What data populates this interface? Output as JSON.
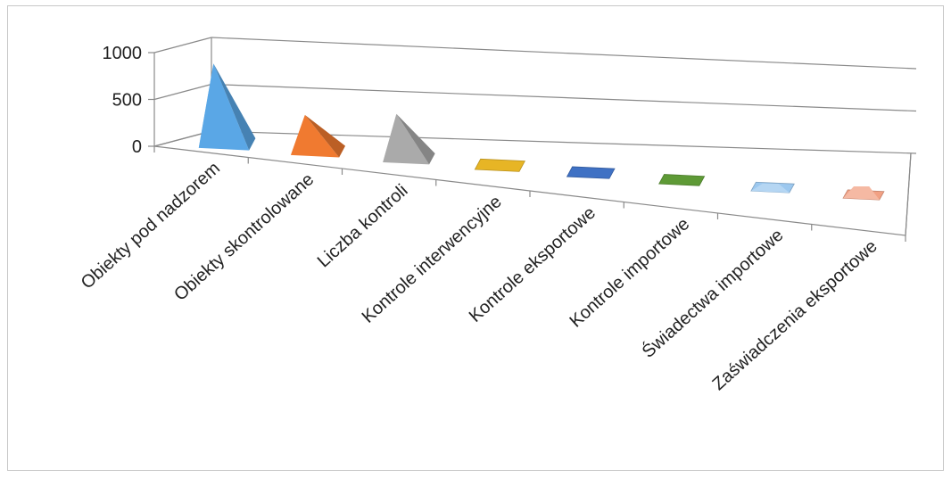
{
  "chart_data": {
    "type": "bar",
    "style": "3d-pyramid",
    "categories": [
      "Obiekty pod nadzorem",
      "Obiekty skontrolowane",
      "Liczba kontroli",
      "Kontrole interwencyjne",
      "Kontrole eksportowe",
      "Kontrole importowe",
      "Świadectwa importowe",
      "Zaświadczenia eksportowe"
    ],
    "values": [
      850,
      380,
      470,
      15,
      10,
      12,
      40,
      90
    ],
    "colors": [
      "#5aa7e6",
      "#f07a30",
      "#aaaaaa",
      "#e7b525",
      "#3f71c4",
      "#5e9a36",
      "#9cc8ef",
      "#f2a184"
    ],
    "yticks": [
      0,
      500,
      1000
    ],
    "ylim": [
      0,
      1000
    ],
    "title": "",
    "xlabel": "",
    "ylabel": "",
    "grid": true,
    "legend": "none"
  }
}
